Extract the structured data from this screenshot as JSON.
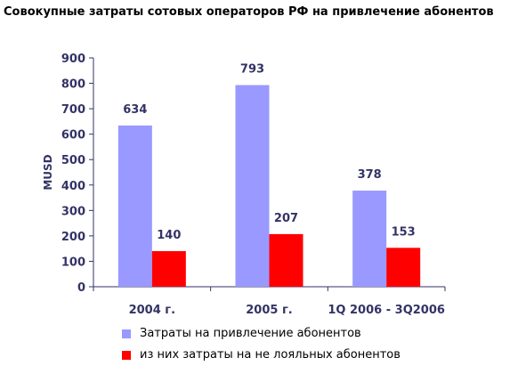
{
  "chart_title": "Совокупные затраты сотовых операторов РФ на привлечение абонентов",
  "chart_data": {
    "type": "bar",
    "title": "Совокупные затраты сотовых операторов РФ на привлечение абонентов",
    "ylabel": "MUSD",
    "xlabel": "",
    "categories": [
      "2004 г.",
      "2005 г.",
      "1Q 2006 - 3Q2006"
    ],
    "ylim": [
      0,
      900
    ],
    "yticks": [
      "0",
      "100",
      "200",
      "300",
      "400",
      "500",
      "600",
      "700",
      "800",
      "900"
    ],
    "grid": false,
    "legend_position": "bottom",
    "series": [
      {
        "name": "Затраты на привлечение абонентов",
        "values": [
          634,
          793,
          378
        ],
        "labels": [
          "634",
          "793",
          "378"
        ],
        "color": "#9999ff"
      },
      {
        "name": "из них затраты на не лояльных абонентов",
        "values": [
          140,
          207,
          153
        ],
        "labels": [
          "140",
          "207",
          "153"
        ],
        "color": "#ff0000"
      }
    ]
  },
  "colors": {
    "axis": "#333366",
    "text": "#333366"
  }
}
